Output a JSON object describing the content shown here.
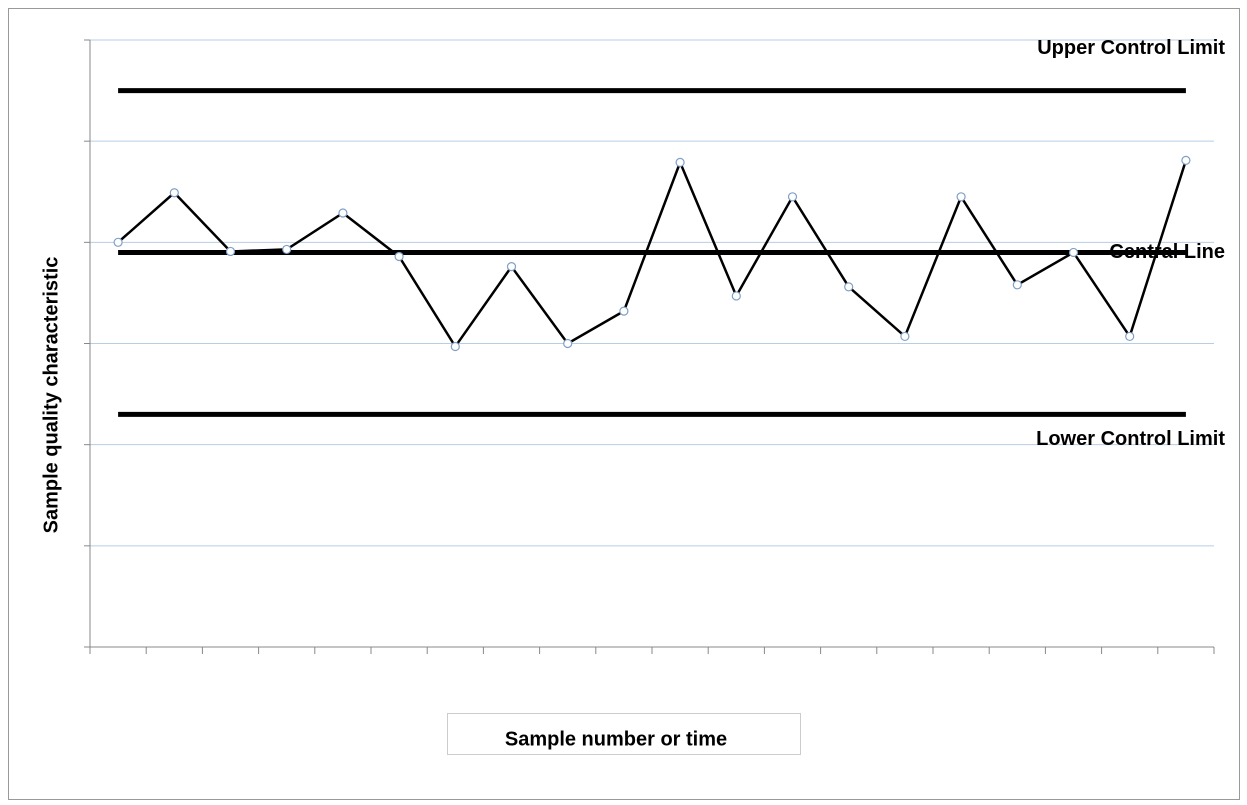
{
  "chart_data": {
    "type": "line",
    "y_label": "Sample quality characteristic",
    "x_label": "Sample number or time",
    "categories": [
      null,
      null,
      null,
      null,
      null,
      null,
      null,
      null,
      null,
      null,
      null,
      null,
      null,
      null,
      null,
      null,
      null,
      null,
      null,
      null
    ],
    "series": [
      {
        "color": "#000000",
        "values": [
          4.0,
          4.49,
          3.91,
          3.93,
          4.29,
          3.86,
          2.97,
          3.76,
          3.0,
          3.32,
          4.79,
          3.47,
          4.45,
          3.56,
          3.07,
          4.45,
          3.58,
          3.9,
          3.07,
          4.81
        ]
      }
    ],
    "control_lines": [
      {
        "label": "Upper Control Limit",
        "value": 5.5
      },
      {
        "label": "Central Line",
        "value": 3.9
      },
      {
        "label": "Lower Control Limit",
        "value": 2.3
      }
    ],
    "ylim": [
      0,
      6
    ],
    "yticks": [
      0,
      1,
      2,
      3,
      4,
      5,
      6
    ],
    "grid": true
  }
}
